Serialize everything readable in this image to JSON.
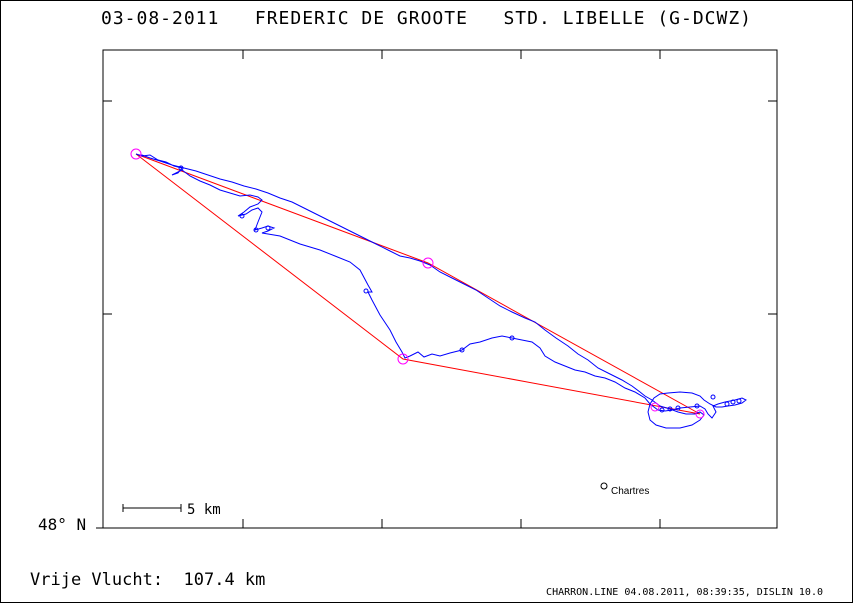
{
  "header": {
    "title": "03-08-2011   FREDERIC DE GROOTE   STD. LIBELLE (G-DCWZ)"
  },
  "map": {
    "latitude_label": "48° N",
    "scale_bar_label": "5 km",
    "town": {
      "name": "Chartres"
    },
    "task_color": "#ff0000",
    "turnpoint_color": "#ff00ff",
    "track_color": "#0000ff"
  },
  "summary": {
    "distance_text": "Vrije Vlucht:  107.4 km"
  },
  "footer": {
    "text": "CHARRON.LINE 04.08.2011, 08:39:35, DISLIN 10.0"
  }
}
